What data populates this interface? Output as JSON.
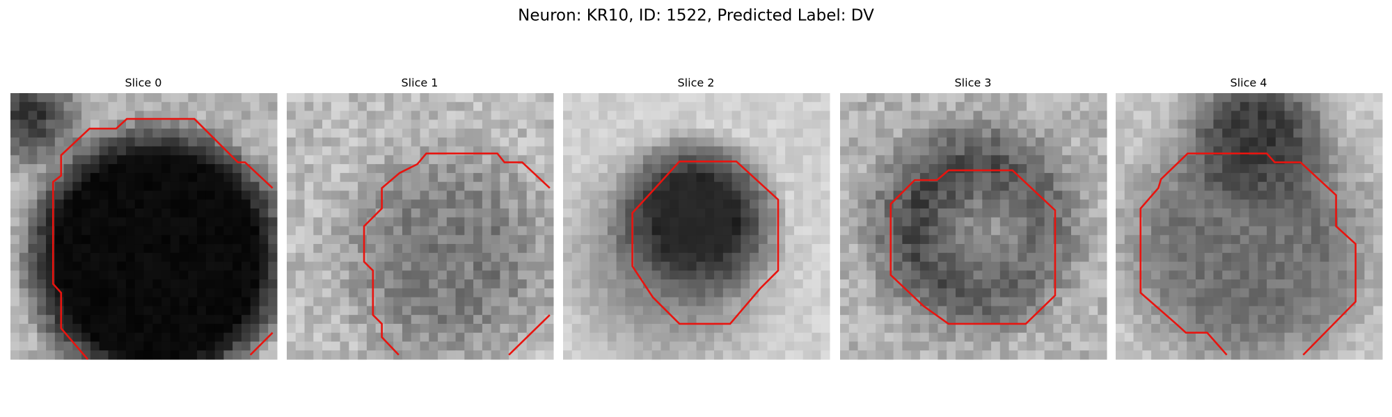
{
  "title": "Neuron: KR10, ID: 1522, Predicted Label: DV",
  "panels": [
    {
      "title": "Slice 0"
    },
    {
      "title": "Slice 1"
    },
    {
      "title": "Slice 2"
    },
    {
      "title": "Slice 3"
    },
    {
      "title": "Slice 4"
    }
  ]
}
